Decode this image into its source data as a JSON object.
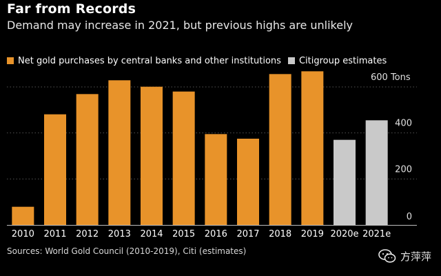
{
  "title": "Far from Records",
  "subtitle": "Demand may increase in 2021, but previous highs are unlikely",
  "legend": {
    "actual": "Net gold purchases by central banks and other institutions",
    "estimate": "Citigroup estimates"
  },
  "source": "Sources: World Gold Council (2010-2019), Citi (estimates)",
  "watermark": "方萍萍",
  "colors": {
    "actual": "#e8932a",
    "estimate": "#c9c9c9",
    "background": "#000000",
    "grid": "#555555"
  },
  "chart_data": {
    "type": "bar",
    "categories": [
      "2010",
      "2011",
      "2012",
      "2013",
      "2014",
      "2015",
      "2016",
      "2017",
      "2018",
      "2019",
      "2020e",
      "2021e"
    ],
    "series": [
      {
        "name": "Net gold purchases by central banks and other institutions",
        "values": [
          79,
          481,
          569,
          629,
          601,
          580,
          395,
          375,
          656,
          668,
          null,
          null
        ]
      },
      {
        "name": "Citigroup estimates",
        "values": [
          null,
          null,
          null,
          null,
          null,
          null,
          null,
          null,
          null,
          null,
          370,
          455
        ]
      }
    ],
    "ylim": [
      0,
      600
    ],
    "yticks": [
      0,
      200,
      400,
      600
    ],
    "ytick_labels": [
      "0",
      "200",
      "400",
      "600 Tons"
    ],
    "ylabel": "",
    "grid": true
  }
}
